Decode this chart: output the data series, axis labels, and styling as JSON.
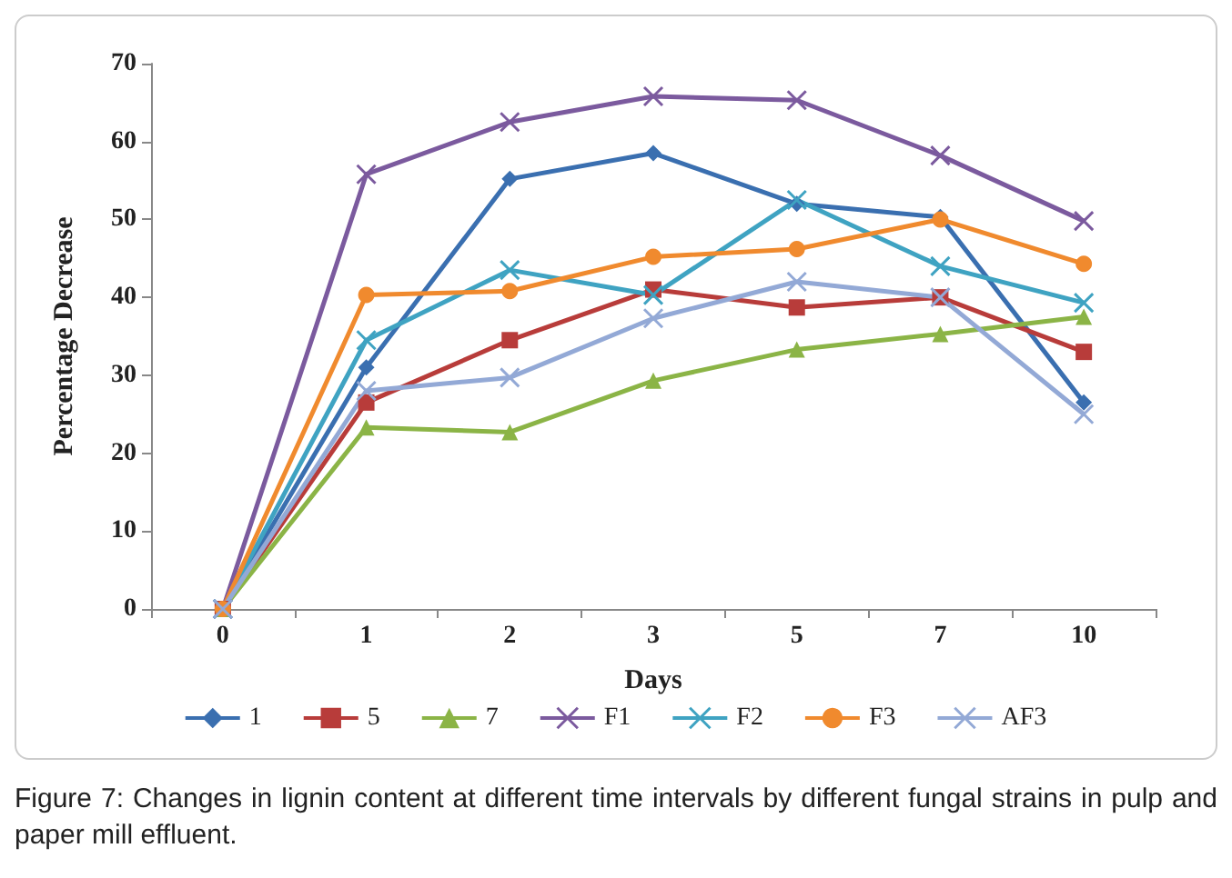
{
  "chart_data": {
    "type": "line",
    "xlabel": "Days",
    "ylabel": "Percentage Decrease",
    "categories": [
      "0",
      "1",
      "2",
      "3",
      "5",
      "7",
      "10"
    ],
    "series": [
      {
        "name": "1",
        "color": "#3a6fb0",
        "marker": "diamond",
        "values": [
          0,
          31,
          55.2,
          58.5,
          52,
          50.3,
          26.5
        ]
      },
      {
        "name": "5",
        "color": "#b83c3a",
        "marker": "square",
        "values": [
          0,
          26.5,
          34.5,
          41,
          38.7,
          40,
          33
        ]
      },
      {
        "name": "7",
        "color": "#8bb446",
        "marker": "triangle",
        "values": [
          0,
          23.3,
          22.7,
          29.3,
          33.3,
          35.3,
          37.5
        ]
      },
      {
        "name": "F1",
        "color": "#7b5a9e",
        "marker": "cross",
        "values": [
          0,
          55.8,
          62.5,
          65.8,
          65.3,
          58.2,
          49.8
        ]
      },
      {
        "name": "F2",
        "color": "#3fa3c2",
        "marker": "cross",
        "values": [
          0,
          34.5,
          43.5,
          40.3,
          52.5,
          44,
          39.3
        ]
      },
      {
        "name": "F3",
        "color": "#f08a2e",
        "marker": "circle",
        "values": [
          0,
          40.3,
          40.8,
          45.2,
          46.2,
          50,
          44.3
        ]
      },
      {
        "name": "AF3",
        "color": "#93a9d6",
        "marker": "cross",
        "values": [
          0,
          28,
          29.7,
          37.3,
          42,
          40,
          25
        ]
      }
    ],
    "ylim": [
      0,
      70
    ],
    "yticks": [
      0,
      10,
      20,
      30,
      40,
      50,
      60,
      70
    ],
    "grid": false,
    "legend": "bottom",
    "line_style": "solid",
    "annotations": [
      "Figure 7: Changes in lignin content at different time intervals by different fungal strains in pulp and paper mill effluent."
    ]
  }
}
